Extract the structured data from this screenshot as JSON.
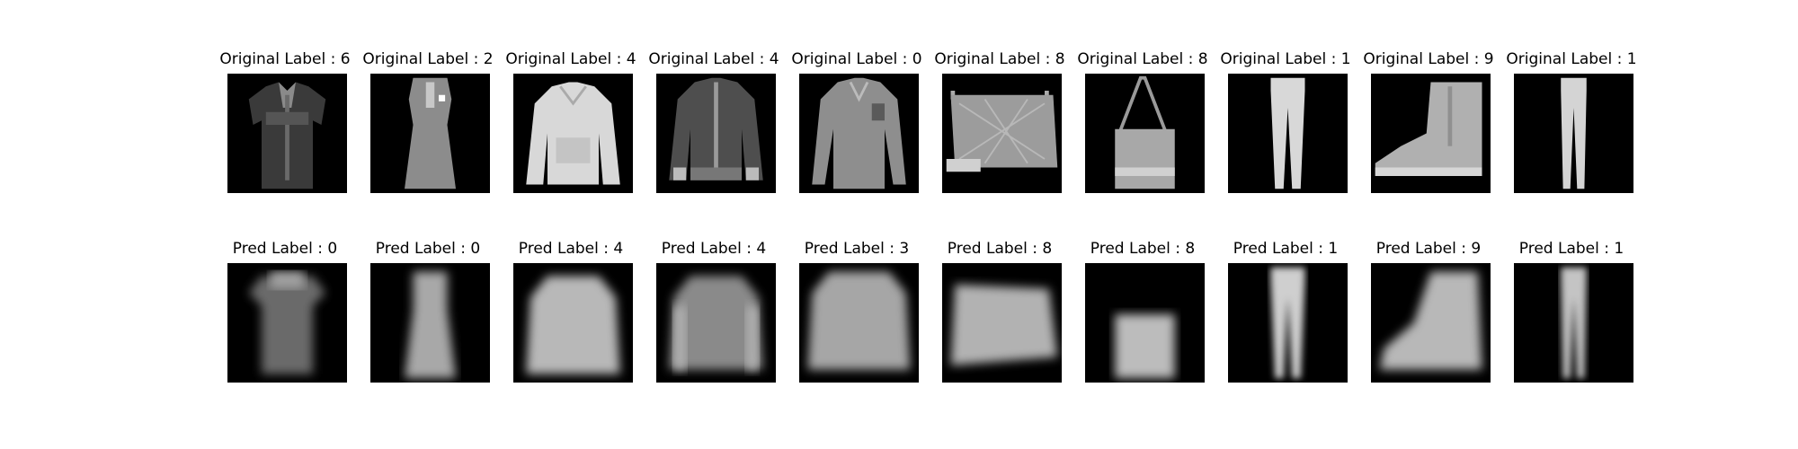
{
  "colors": {
    "background": "#ffffff",
    "image_background": "#000000",
    "text": "#000000"
  },
  "original_row": [
    {
      "label": "Original Label : 6",
      "item": "shirt"
    },
    {
      "label": "Original Label : 2",
      "item": "dress"
    },
    {
      "label": "Original Label : 4",
      "item": "coat-light"
    },
    {
      "label": "Original Label : 4",
      "item": "coat-dark"
    },
    {
      "label": "Original Label : 0",
      "item": "long-sleeve-top"
    },
    {
      "label": "Original Label : 8",
      "item": "bag-wide"
    },
    {
      "label": "Original Label : 8",
      "item": "bag-handle"
    },
    {
      "label": "Original Label : 1",
      "item": "trouser"
    },
    {
      "label": "Original Label : 9",
      "item": "ankle-boot"
    },
    {
      "label": "Original Label : 1",
      "item": "trouser"
    }
  ],
  "pred_row": [
    {
      "label": "Pred Label : 0",
      "item": "blurry-tshirt"
    },
    {
      "label": "Pred Label : 0",
      "item": "blurry-dress"
    },
    {
      "label": "Pred Label : 4",
      "item": "blurry-pullover"
    },
    {
      "label": "Pred Label : 4",
      "item": "blurry-pullover-dark"
    },
    {
      "label": "Pred Label : 3",
      "item": "blurry-longsleeve"
    },
    {
      "label": "Pred Label : 8",
      "item": "blurry-bag"
    },
    {
      "label": "Pred Label : 8",
      "item": "blurry-small-bag"
    },
    {
      "label": "Pred Label : 1",
      "item": "blurry-trouser"
    },
    {
      "label": "Pred Label : 9",
      "item": "blurry-boot"
    },
    {
      "label": "Pred Label : 1",
      "item": "blurry-trouser-narrow"
    }
  ]
}
